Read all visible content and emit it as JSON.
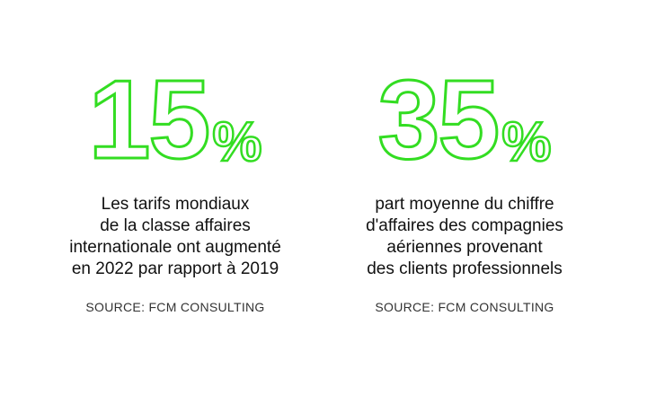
{
  "accent_color": "#33dd22",
  "stats": [
    {
      "number": "15",
      "percent_sign": "%",
      "description_lines": [
        "Les tarifs mondiaux",
        "de la classe affaires",
        "internationale ont augmenté",
        "en 2022 par rapport à 2019"
      ],
      "source": "SOURCE: FCM CONSULTING"
    },
    {
      "number": "35",
      "percent_sign": "%",
      "description_lines": [
        "part moyenne du chiffre",
        "d'affaires des compagnies",
        "aériennes provenant",
        "des clients professionnels"
      ],
      "source": "SOURCE: FCM CONSULTING"
    }
  ]
}
